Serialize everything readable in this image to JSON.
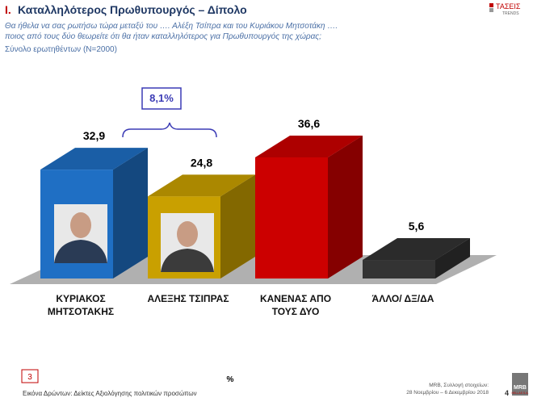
{
  "chart_data": {
    "type": "bar3d",
    "section": "Ι.",
    "title": "Καταλληλότερος Πρωθυπουργός – Δίπολο",
    "subtitle": [
      "Θα ήθελα να σας ρωτήσω τώρα μεταξύ του …. Αλέξη Τσίπρα και του Κυριάκου Μητσοτάκη ….",
      "ποιος από τους δύο θεωρείτε ότι θα ήταν καταλληλότερος για Πρωθυπουργός της χώρας;"
    ],
    "base": "Σύνολο ερωτηθέντων (N=2000)",
    "categories": [
      "ΚΥΡΙΑΚΟΣ ΜΗΤΣΟΤΑΚΗΣ",
      "ΑΛΕΞΗΣ ΤΣΙΠΡΑΣ",
      "ΚΑΝΕΝΑΣ ΑΠΟ ΤΟΥΣ ΔΥΟ",
      "ΆΛΛΟ/ ΔΞ/ΔΑ"
    ],
    "values": [
      32.9,
      24.8,
      36.6,
      5.6
    ],
    "value_labels": [
      "32,9",
      "24,8",
      "36,6",
      "5,6"
    ],
    "colors": [
      "#1f6fc4",
      "#c9a000",
      "#cc0000",
      "#333333"
    ],
    "annotation": "8,1%",
    "unit": "%",
    "footer": {
      "page_box": "3",
      "left": "Εικόνα Δρώντων: Δείκτες Αξιολόγησης πολιτικών προσώπων",
      "source": "MRB, Συλλογή στοιχείων:",
      "dates": "28 Νοεμβρίου – 6 Δεκεμβρίου 2018",
      "page": "4",
      "logo": "MRB",
      "logo_sub": "HELLAS S.A."
    },
    "brand": {
      "name": "ΤΑΣΕΙΣ",
      "sub": "TRENDS"
    }
  }
}
